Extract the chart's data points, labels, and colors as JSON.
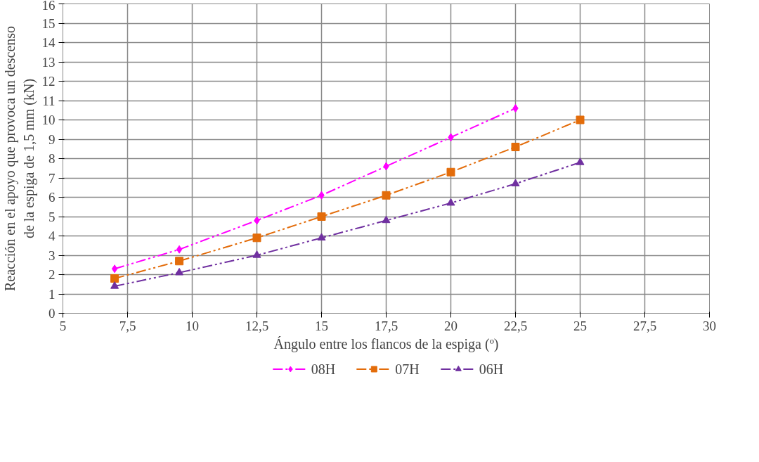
{
  "chart_data": {
    "type": "line",
    "xlabel": "Ángulo entre los flancos de la espiga (º)",
    "ylabel": "Reacción en el apoyo que provoca un descenso\nde la espiga de 1,5 mm (kN)",
    "xlim": [
      5,
      30
    ],
    "xticks": [
      5,
      {
        "value": 7.5,
        "label": "7,5"
      },
      10,
      {
        "value": 12.5,
        "label": "12,5"
      },
      15,
      {
        "value": 17.5,
        "label": "17,5"
      },
      20,
      {
        "value": 22.5,
        "label": "22,5"
      },
      25,
      {
        "value": 27.5,
        "label": "27,5"
      },
      30
    ],
    "ylim": [
      0,
      16
    ],
    "yticks": [
      0,
      1,
      2,
      3,
      4,
      5,
      6,
      7,
      8,
      9,
      10,
      11,
      12,
      13,
      14,
      15,
      16
    ],
    "grid": true,
    "legend": "bottom",
    "line_style": "dashed",
    "series": [
      {
        "name": "08H",
        "color": "#ff00ff",
        "marker": "diamond",
        "x": [
          7,
          9.5,
          12.5,
          15,
          17.5,
          20,
          22.5
        ],
        "values": [
          2.3,
          3.3,
          4.8,
          6.1,
          7.6,
          9.1,
          10.6
        ]
      },
      {
        "name": "07H",
        "color": "#e36c0a",
        "marker": "square",
        "x": [
          7,
          9.5,
          12.5,
          15,
          17.5,
          20,
          22.5,
          25
        ],
        "values": [
          1.8,
          2.7,
          3.9,
          5.0,
          6.1,
          7.3,
          8.6,
          10.0
        ]
      },
      {
        "name": "06H",
        "color": "#7030a0",
        "marker": "triangle",
        "x": [
          7,
          9.5,
          12.5,
          15,
          17.5,
          20,
          22.5,
          25
        ],
        "values": [
          1.4,
          2.1,
          3.0,
          3.9,
          4.8,
          5.7,
          6.7,
          7.8
        ]
      }
    ]
  }
}
